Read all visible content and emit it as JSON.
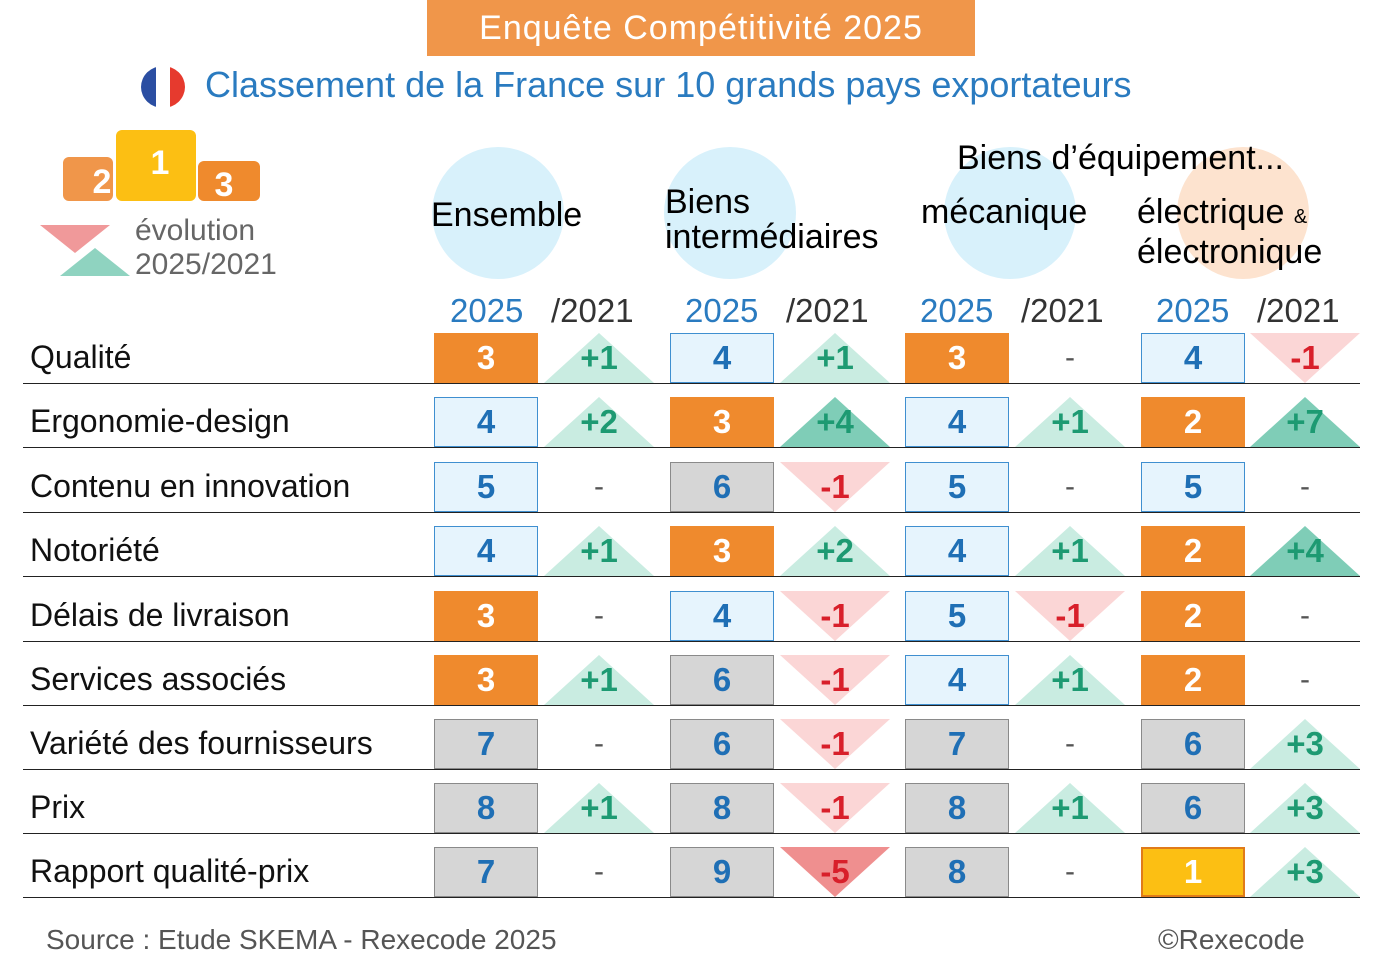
{
  "banner": "Enquête Compétitivité 2025",
  "subtitle": "Classement de la France sur 10 grands pays exportateurs",
  "legend": {
    "podium": [
      "2",
      "1",
      "3"
    ],
    "evolution_line1": "évolution",
    "evolution_line2": "2025/2021"
  },
  "group_title": "Biens d’équipement...",
  "columns": [
    {
      "title_lines": [
        "Ensemble"
      ],
      "year_label": "2025",
      "cmp_label": "/2021"
    },
    {
      "title_lines": [
        "Biens",
        "intermédiaires"
      ],
      "year_label": "2025",
      "cmp_label": "/2021"
    },
    {
      "title_lines": [
        "mécanique"
      ],
      "year_label": "2025",
      "cmp_label": "/2021"
    },
    {
      "title_lines": [
        "électrique",
        "électronique"
      ],
      "amp": "&",
      "year_label": "2025",
      "cmp_label": "/2021"
    }
  ],
  "footer": {
    "source": "Source : Etude SKEMA - Rexecode 2025",
    "copyright": "©Rexecode"
  },
  "colors": {
    "banner": "#f0964a",
    "title_blue": "#2a7bc0",
    "top3": "#ef8a2d",
    "first": "#fcbf13",
    "mid": "#e6f4fd",
    "low": "#d6d6d6",
    "up_light": "#c9ece1",
    "up_dark": "#7fcdb7",
    "down_light": "#fbd6d6",
    "down_dark": "#ef8f8f"
  },
  "chart_data": {
    "type": "table",
    "title": "Classement de la France sur 10 grands pays exportateurs",
    "series": [
      {
        "name": "Ensemble",
        "ranks": [
          3,
          4,
          5,
          4,
          3,
          3,
          7,
          8,
          7
        ],
        "evolution": [
          "+1",
          "+2",
          "-",
          "+1",
          "-",
          "+1",
          "-",
          "+1",
          "-"
        ]
      },
      {
        "name": "Biens intermédiaires",
        "ranks": [
          4,
          3,
          6,
          3,
          4,
          6,
          6,
          8,
          9
        ],
        "evolution": [
          "+1",
          "+4",
          "-1",
          "+2",
          "-1",
          "-1",
          "-1",
          "-1",
          "-5"
        ]
      },
      {
        "name": "Biens d’équipement... mécanique",
        "ranks": [
          3,
          4,
          5,
          4,
          5,
          4,
          7,
          8,
          8
        ],
        "evolution": [
          "-",
          "+1",
          "-",
          "+1",
          "-1",
          "+1",
          "-",
          "+1",
          "-"
        ]
      },
      {
        "name": "Biens d’équipement... électrique & électronique",
        "ranks": [
          4,
          2,
          5,
          2,
          2,
          2,
          6,
          6,
          1
        ],
        "evolution": [
          "-1",
          "+7",
          "-",
          "+4",
          "-",
          "-",
          "+3",
          "+3",
          "+3"
        ]
      }
    ],
    "categories": [
      "Qualité",
      "Ergonomie-design",
      "Contenu en innovation",
      "Notoriété",
      "Délais de livraison",
      "Services associés",
      "Variété des fournisseurs",
      "Prix",
      "Rapport qualité-prix"
    ]
  }
}
